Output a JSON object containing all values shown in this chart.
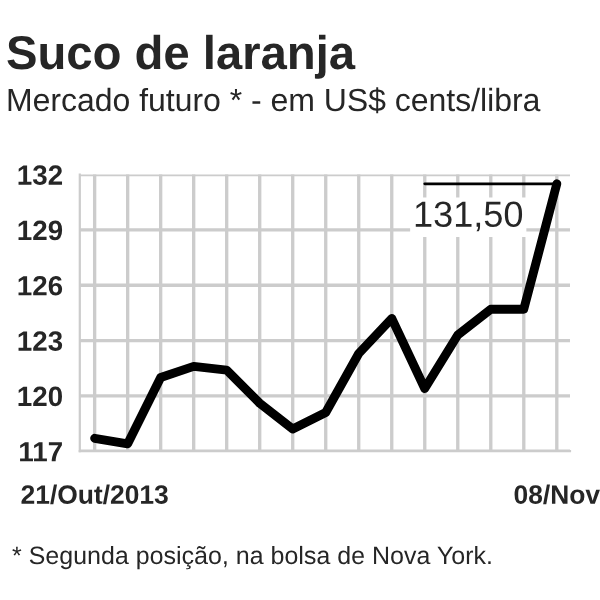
{
  "chart_data": {
    "type": "line",
    "title": "Suco de laranja",
    "subtitle": "Mercado futuro * - em US$ cents/libra",
    "categories": [
      "21/Out/2013",
      null,
      null,
      null,
      null,
      null,
      null,
      null,
      null,
      null,
      null,
      null,
      null,
      null,
      "08/Nov"
    ],
    "series": [
      {
        "color": "#000000",
        "values": [
          117.7,
          117.4,
          121.0,
          121.6,
          121.4,
          119.6,
          118.2,
          119.1,
          122.3,
          124.2,
          120.4,
          123.3,
          124.7,
          124.7,
          131.5
        ]
      }
    ],
    "ylim": [
      117,
      132
    ],
    "yticks": [
      117,
      120,
      123,
      126,
      129,
      132
    ],
    "grid": true,
    "marker": "none",
    "line_style": "solid",
    "annotations": [
      {
        "text": "131,50",
        "x": "08/Nov",
        "y": 131.5
      },
      "* Segunda posição, na bolsa de Nova York."
    ]
  }
}
